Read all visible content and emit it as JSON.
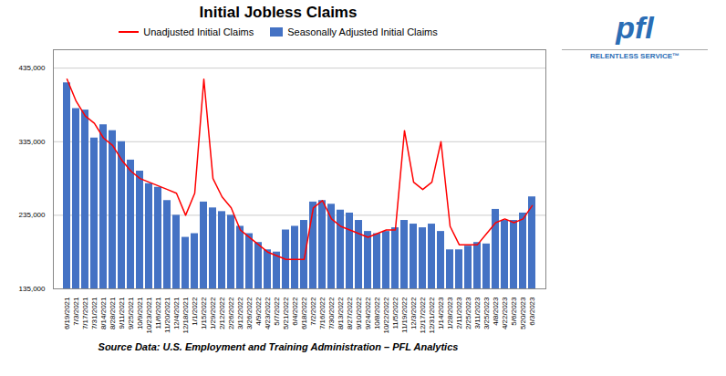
{
  "chart_data": {
    "type": "bar",
    "title": "Initial Jobless Claims",
    "caption": "Source Data: U.S. Employment and Training Administration – PFL Analytics",
    "categories": [
      "6/19/2021",
      "7/3/2021",
      "7/17/2021",
      "7/31/2021",
      "8/14/2021",
      "8/28/2021",
      "9/11/2021",
      "9/25/2021",
      "10/9/2021",
      "10/23/2021",
      "11/6/2021",
      "11/20/2021",
      "12/4/2021",
      "12/18/2021",
      "1/1/2022",
      "1/15/2022",
      "1/29/2022",
      "2/12/2022",
      "2/26/2022",
      "3/12/2022",
      "3/26/2022",
      "4/9/2022",
      "4/23/2022",
      "5/7/2022",
      "5/21/2022",
      "6/4/2022",
      "6/18/2022",
      "7/2/2022",
      "7/16/2022",
      "7/30/2022",
      "8/13/2022",
      "8/27/2022",
      "9/10/2022",
      "9/24/2022",
      "10/8/2022",
      "10/22/2022",
      "11/5/2022",
      "11/19/2022",
      "12/3/2022",
      "12/17/2022",
      "12/31/2022",
      "1/14/2023",
      "1/28/2023",
      "2/11/2023",
      "2/25/2023",
      "3/11/2023",
      "3/25/2023",
      "4/8/2023",
      "4/22/2023",
      "5/6/2023",
      "5/20/2023",
      "6/3/2023"
    ],
    "series": [
      {
        "name": "Unadjusted Initial Claims",
        "type": "line",
        "color": "#FF0000",
        "values": [
          420000,
          390000,
          370000,
          360000,
          340000,
          330000,
          310000,
          295000,
          285000,
          280000,
          275000,
          270000,
          265000,
          235000,
          265000,
          420000,
          285000,
          260000,
          245000,
          215000,
          205000,
          195000,
          185000,
          180000,
          175000,
          175000,
          175000,
          245000,
          255000,
          230000,
          220000,
          215000,
          210000,
          205000,
          210000,
          215000,
          215000,
          350000,
          280000,
          270000,
          280000,
          335000,
          220000,
          195000,
          195000,
          195000,
          210000,
          225000,
          230000,
          225000,
          230000,
          248000
        ]
      },
      {
        "name": "Seasonally Adjusted Initial Claims",
        "type": "bar",
        "color": "#4472C4",
        "values": [
          415000,
          380000,
          378000,
          340000,
          358000,
          350000,
          335000,
          310000,
          295000,
          278000,
          273000,
          255000,
          235000,
          205000,
          210000,
          253000,
          245000,
          240000,
          235000,
          220000,
          210000,
          198000,
          188000,
          185000,
          215000,
          220000,
          228000,
          253000,
          255000,
          250000,
          242000,
          238000,
          228000,
          213000,
          210000,
          213000,
          218000,
          228000,
          223000,
          218000,
          223000,
          213000,
          188000,
          188000,
          193000,
          198000,
          196000,
          243000,
          228000,
          228000,
          238000,
          260000
        ]
      }
    ],
    "ylim": [
      135000,
      460000
    ],
    "yticks": [
      {
        "value": 135000,
        "label": "135,000"
      },
      {
        "value": 235000,
        "label": "235,000"
      },
      {
        "value": 335000,
        "label": "335,000"
      },
      {
        "value": 435000,
        "label": "435,000"
      }
    ],
    "grid": true,
    "legend": "top",
    "annotations": [
      {
        "text": "pfl",
        "color": "#2a6db5"
      },
      {
        "text": "RELENTLESS SERVICE™",
        "color": "#2a6db5"
      }
    ]
  }
}
